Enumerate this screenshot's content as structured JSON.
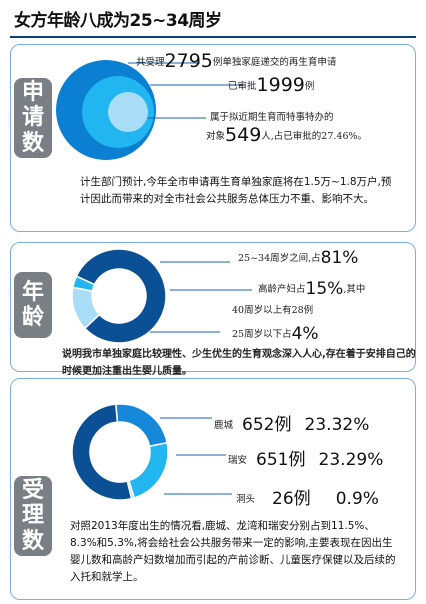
{
  "title": "女方年龄八成为25~34周岁",
  "colors": {
    "navy": "#0b4f95",
    "blue": "#1688d9",
    "cyan": "#22b6f0",
    "light": "#a9ddf7",
    "grey": "#7a7f86"
  },
  "applications": {
    "tab_chars": [
      "申",
      "请",
      "数"
    ],
    "line1": {
      "pre": "共受理",
      "num": "2795",
      "post": "例单独家庭递交的再生育申请"
    },
    "line2": {
      "pre": "已审批",
      "num": "1999",
      "post": "例"
    },
    "line3": "属于拟近期生育而特事特办的",
    "line4": {
      "pre": "对象",
      "num": "549",
      "post": "人,占已审批的27.46%。"
    },
    "paragraph": "计生部门预计,今年全市申请再生育单独家庭将在1.5万~1.8万户,预计因此而带来的对全市社会公共服务总体压力不重、影响不大。",
    "circle_values": [
      2795,
      1999,
      549
    ]
  },
  "age": {
    "tab_chars": [
      "年",
      "龄"
    ],
    "line1": {
      "pre": "25~34周岁之间,占",
      "num": "81%"
    },
    "line2": {
      "pre": "高龄产妇占",
      "num": "15%",
      "post": ",其中"
    },
    "line3": "40周岁以上有28例",
    "line4": {
      "pre": "25周岁以下占",
      "num": "4%"
    },
    "paragraph": "说明我市单独家庭比较理性、少生优生的生育观念深入人心,存在着于安排自己的时候更加注重出生婴儿质量。",
    "donut_shares": [
      81,
      15,
      4
    ]
  },
  "accepted": {
    "tab_chars": [
      "受",
      "理",
      "数"
    ],
    "rows": [
      {
        "place": "鹿城",
        "count": "652例",
        "pct": "23.32%"
      },
      {
        "place": "瑞安",
        "count": "651例",
        "pct": "23.29%"
      },
      {
        "place": "洞头",
        "count": "26例",
        "pct": "0.9%"
      }
    ],
    "paragraph": "对照2013年度出生的情况看,鹿城、龙湾和瑞安分别占到11.5%、8.3%和5.3%,将会给社会公共服务带来一定的影响,主要表现在因出生婴儿数和高龄产妇数增加而引起的产前诊断、儿童医疗保健以及后续的入托和就学上。",
    "donut_shares": [
      23.32,
      23.29,
      0.9,
      52.49
    ]
  }
}
